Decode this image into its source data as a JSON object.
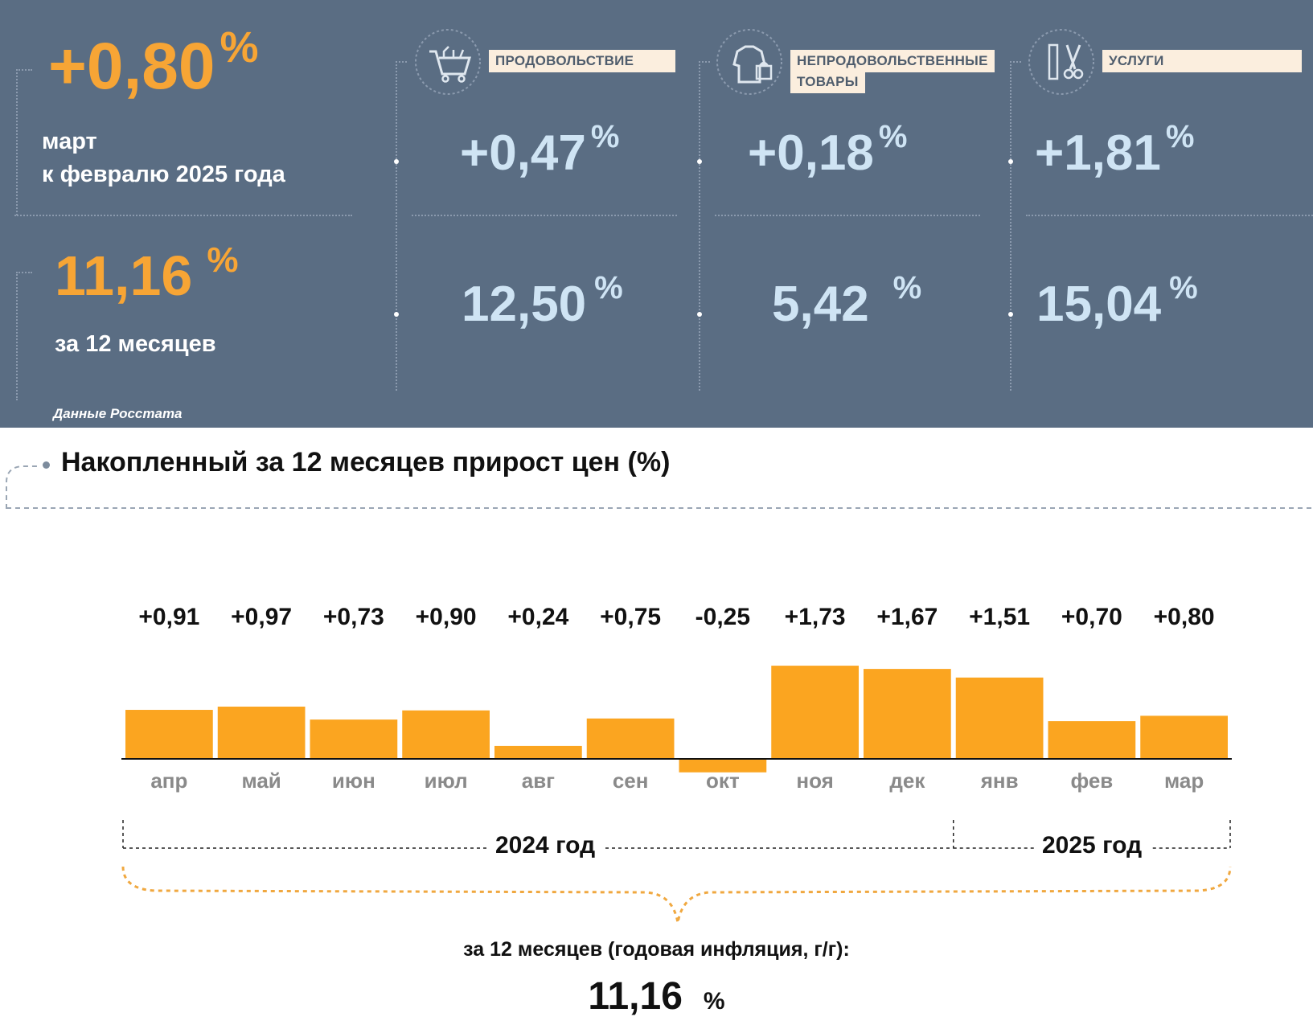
{
  "header": {
    "monthly_value": "+0,80",
    "monthly_caption_line1": "март",
    "monthly_caption_line2": "к февралю 2025 года",
    "annual_value": "11,16",
    "annual_caption": "за 12 месяцев",
    "percent_sign": "%",
    "source": "Данные Росстата"
  },
  "categories": [
    {
      "label_line1": "ПРОДОВОЛЬСТВИЕ",
      "label_line2": "",
      "icon": "shopping-cart-icon",
      "monthly": "+0,47",
      "annual": "12,50"
    },
    {
      "label_line1": "НЕПРОДОВОЛЬСТВЕННЫЕ",
      "label_line2": "ТОВАРЫ",
      "icon": "clothes-bag-icon",
      "monthly": "+0,18",
      "annual": "5,42"
    },
    {
      "label_line1": "УСЛУГИ",
      "label_line2": "",
      "icon": "scissors-comb-icon",
      "monthly": "+1,81",
      "annual": "15,04"
    }
  ],
  "colors": {
    "panel": "#5a6d83",
    "accent": "#f7a535",
    "light_blue": "#cfe4f4",
    "bar": "#fba520"
  },
  "chart_data": {
    "type": "bar",
    "title": "Накопленный за 12 месяцев прирост цен (%)",
    "categories": [
      "апр",
      "май",
      "июн",
      "июл",
      "авг",
      "сен",
      "окт",
      "ноя",
      "дек",
      "янв",
      "фев",
      "мар"
    ],
    "values": [
      0.91,
      0.97,
      0.73,
      0.9,
      0.24,
      0.75,
      -0.25,
      1.73,
      1.67,
      1.51,
      0.7,
      0.8
    ],
    "value_labels": [
      "+0,91",
      "+0,97",
      "+0,73",
      "+0,90",
      "+0,24",
      "+0,75",
      "-0,25",
      "+1,73",
      "+1,67",
      "+1,51",
      "+0,70",
      "+0,80"
    ],
    "groups": [
      {
        "label": "2024 год",
        "months": 9
      },
      {
        "label": "2025 год",
        "months": 3
      }
    ],
    "summary_caption": "за 12 месяцев (годовая инфляция, г/г):",
    "summary_value": "11,16",
    "summary_unit": "%"
  }
}
